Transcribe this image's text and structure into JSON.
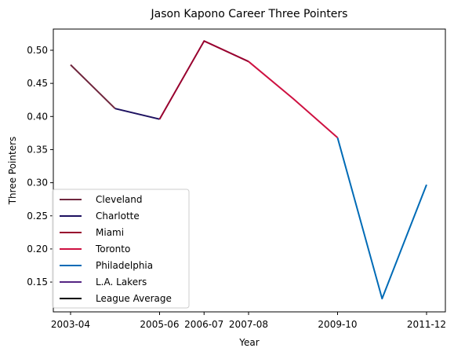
{
  "chart_data": {
    "type": "line",
    "title": "Jason Kapono Career Three Pointers",
    "xlabel": "Year",
    "ylabel": "Three Pointers",
    "x": [
      "2003-04",
      "2004-05",
      "2005-06",
      "2006-07",
      "2007-08",
      "2008-09",
      "2009-10",
      "2010-11",
      "2011-12"
    ],
    "x_tick_labels": [
      "2003-04",
      "2005-06",
      "2006-07",
      "2007-08",
      "2009-10",
      "2011-12"
    ],
    "y_tick_labels": [
      "0.15",
      "0.20",
      "0.25",
      "0.30",
      "0.35",
      "0.40",
      "0.45",
      "0.50"
    ],
    "ylim": [
      0.105,
      0.532
    ],
    "grid": false,
    "legend_position": "lower-left",
    "series": [
      {
        "name": "Cleveland",
        "color": "#6F263D",
        "points": [
          [
            0,
            0.478
          ],
          [
            1,
            0.412
          ]
        ]
      },
      {
        "name": "Charlotte",
        "color": "#1D1160",
        "points": [
          [
            1,
            0.412
          ],
          [
            2,
            0.396
          ]
        ]
      },
      {
        "name": "Miami",
        "color": "#98002E",
        "points": [
          [
            2,
            0.396
          ],
          [
            3,
            0.514
          ],
          [
            4,
            0.483
          ]
        ]
      },
      {
        "name": "Toronto",
        "color": "#CE1141",
        "points": [
          [
            4,
            0.483
          ],
          [
            5,
            0.427
          ],
          [
            6,
            0.368
          ]
        ]
      },
      {
        "name": "Philadelphia",
        "color": "#006BB6",
        "points": [
          [
            6,
            0.368
          ],
          [
            7,
            0.125
          ],
          [
            8,
            0.297
          ]
        ]
      },
      {
        "name": "L.A. Lakers",
        "color": "#552583",
        "points": []
      },
      {
        "name": "League Average",
        "color": "#000000",
        "points": []
      }
    ]
  }
}
